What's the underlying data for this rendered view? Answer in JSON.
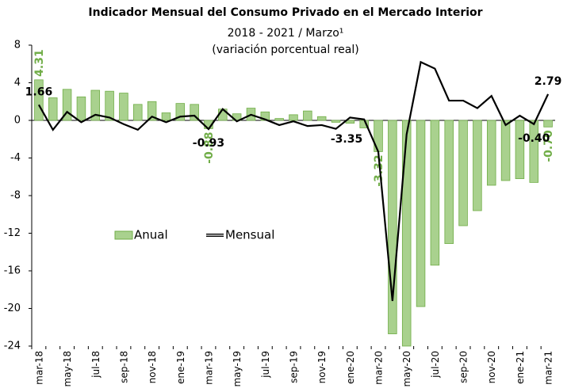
{
  "chart_data": {
    "type": "bar-line",
    "title": "Indicador Mensual del Consumo Privado en el Mercado Interior",
    "subtitle": [
      "2018 - 2021 / Marzo¹",
      "(variación porcentual real)"
    ],
    "categories": [
      "mar-18",
      null,
      "may-18",
      null,
      "jul-18",
      null,
      "sep-18",
      null,
      "nov-18",
      null,
      "ene-19",
      null,
      "mar-19",
      null,
      "may-19",
      null,
      "jul-19",
      null,
      "sep-19",
      null,
      "nov-19",
      null,
      "ene-20",
      null,
      "mar-20",
      null,
      "may-20",
      null,
      "jul-20",
      null,
      "sep-20",
      null,
      "nov-20",
      null,
      "ene-21",
      null,
      "mar-21"
    ],
    "series": [
      {
        "name": "Anual",
        "type": "bar",
        "color": "#a9d18e",
        "edge_color": "#70ad47",
        "label_color": "#70ad47",
        "values": [
          4.31,
          2.4,
          3.3,
          2.5,
          3.2,
          3.1,
          2.9,
          1.7,
          2.0,
          0.8,
          1.8,
          1.7,
          -0.88,
          1.2,
          0.7,
          1.3,
          0.9,
          0.2,
          0.6,
          1.0,
          0.4,
          -0.2,
          -0.3,
          -0.8,
          -3.32,
          -22.7,
          -24.0,
          -19.8,
          -15.4,
          -13.1,
          -11.2,
          -9.6,
          -6.9,
          -6.4,
          -6.2,
          -6.6,
          -0.7
        ],
        "value_labels": [
          "4.31",
          null,
          null,
          null,
          null,
          null,
          null,
          null,
          null,
          null,
          null,
          null,
          "-0.88",
          null,
          null,
          null,
          null,
          null,
          null,
          null,
          null,
          null,
          null,
          null,
          "-3.32",
          null,
          null,
          null,
          null,
          null,
          null,
          null,
          null,
          null,
          null,
          null,
          "-0.70"
        ]
      },
      {
        "name": "Mensual",
        "type": "line",
        "color": "#000000",
        "label_color": "#000000",
        "values": [
          1.66,
          -1.0,
          0.9,
          -0.2,
          0.6,
          0.3,
          -0.4,
          -1.0,
          0.4,
          -0.2,
          0.4,
          0.5,
          -0.93,
          1.2,
          -0.1,
          0.6,
          0.1,
          -0.5,
          -0.1,
          -0.6,
          -0.5,
          -0.9,
          0.3,
          0.1,
          -3.35,
          -19.2,
          -1.5,
          6.2,
          5.5,
          2.1,
          2.1,
          1.3,
          2.6,
          -0.5,
          0.5,
          -0.4,
          2.79
        ],
        "value_labels": [
          "1.66",
          null,
          null,
          null,
          null,
          null,
          null,
          null,
          null,
          null,
          null,
          null,
          "-0.93",
          null,
          null,
          null,
          null,
          null,
          null,
          null,
          null,
          null,
          null,
          null,
          "-3.35",
          null,
          null,
          null,
          null,
          null,
          null,
          null,
          null,
          null,
          null,
          "-0.40",
          "2.79"
        ]
      }
    ],
    "ylim": [
      -24,
      8
    ],
    "yticks": [
      -24,
      -20,
      -16,
      -12,
      -8,
      -4,
      0,
      4,
      8
    ]
  }
}
